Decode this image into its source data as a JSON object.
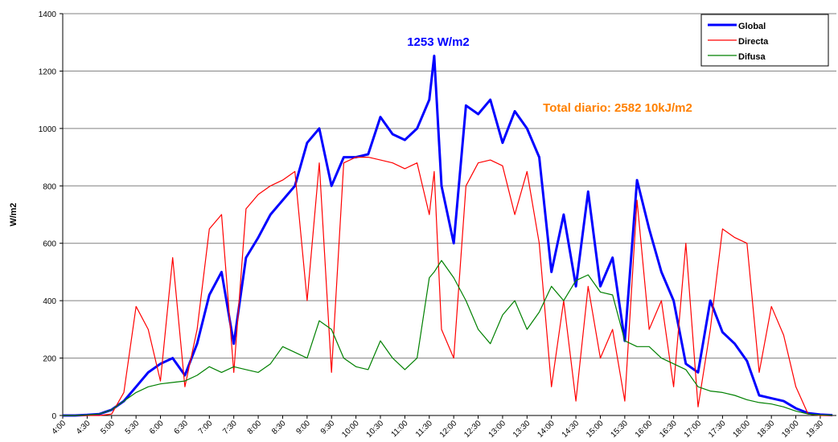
{
  "chart_data": {
    "type": "line",
    "y_label": "W/m2",
    "annotations": [
      {
        "text": "1253  W/m2",
        "color": "#0000ff"
      },
      {
        "text": "Total diario:  2582  10kJ/m2",
        "color": "#ff8000"
      }
    ],
    "x": [
      4,
      4.25,
      4.5,
      4.75,
      5,
      5.25,
      5.5,
      5.75,
      6,
      6.25,
      6.5,
      6.75,
      7,
      7.25,
      7.5,
      7.75,
      8,
      8.25,
      8.5,
      8.75,
      9,
      9.25,
      9.5,
      9.75,
      10,
      10.25,
      10.5,
      10.75,
      11,
      11.25,
      11.5,
      11.6,
      11.75,
      12,
      12.25,
      12.5,
      12.75,
      13,
      13.25,
      13.5,
      13.75,
      14,
      14.25,
      14.5,
      14.75,
      15,
      15.25,
      15.5,
      15.75,
      16,
      16.25,
      16.5,
      16.75,
      17,
      17.25,
      17.5,
      17.75,
      18,
      18.25,
      18.5,
      18.75,
      19,
      19.25,
      19.5,
      19.75
    ],
    "series": [
      {
        "name": "Global",
        "color": "#0000ff",
        "width": 3,
        "values": [
          0,
          0,
          2,
          5,
          20,
          50,
          100,
          150,
          180,
          200,
          140,
          250,
          420,
          500,
          250,
          550,
          620,
          700,
          750,
          800,
          950,
          1000,
          800,
          900,
          900,
          910,
          1040,
          980,
          960,
          1000,
          1100,
          1253,
          800,
          600,
          1080,
          1050,
          1100,
          950,
          1060,
          1000,
          900,
          500,
          700,
          450,
          780,
          450,
          550,
          260,
          820,
          650,
          500,
          400,
          180,
          150,
          400,
          290,
          250,
          190,
          70,
          60,
          50,
          25,
          8,
          3,
          1
        ]
      },
      {
        "name": "Directa",
        "color": "#ff0000",
        "width": 1.2,
        "values": [
          0,
          0,
          0,
          0,
          5,
          80,
          380,
          300,
          120,
          550,
          100,
          300,
          650,
          700,
          150,
          720,
          770,
          800,
          820,
          850,
          400,
          880,
          150,
          880,
          900,
          900,
          890,
          880,
          860,
          880,
          700,
          850,
          300,
          200,
          800,
          880,
          890,
          870,
          700,
          850,
          600,
          100,
          400,
          50,
          450,
          200,
          300,
          50,
          750,
          300,
          400,
          100,
          600,
          30,
          300,
          650,
          620,
          600,
          150,
          380,
          280,
          100,
          5,
          0,
          0
        ]
      },
      {
        "name": "Difusa",
        "color": "#008000",
        "width": 1.2,
        "values": [
          0,
          0,
          2,
          5,
          20,
          50,
          80,
          100,
          110,
          115,
          120,
          140,
          170,
          150,
          170,
          160,
          150,
          180,
          240,
          220,
          200,
          330,
          300,
          200,
          170,
          160,
          260,
          200,
          160,
          200,
          480,
          500,
          540,
          480,
          400,
          300,
          250,
          350,
          400,
          300,
          360,
          450,
          400,
          470,
          490,
          430,
          420,
          260,
          240,
          240,
          200,
          180,
          160,
          100,
          85,
          80,
          70,
          55,
          45,
          40,
          30,
          15,
          5,
          2,
          1
        ]
      }
    ],
    "xlim": [
      4,
      19.83
    ],
    "xticks": [
      {
        "value": 4,
        "label": "4:00"
      },
      {
        "value": 4.5,
        "label": "4:30"
      },
      {
        "value": 5,
        "label": "5:00"
      },
      {
        "value": 5.5,
        "label": "5:30"
      },
      {
        "value": 6,
        "label": "6:00"
      },
      {
        "value": 6.5,
        "label": "6:30"
      },
      {
        "value": 7,
        "label": "7:00"
      },
      {
        "value": 7.5,
        "label": "7:30"
      },
      {
        "value": 8,
        "label": "8:00"
      },
      {
        "value": 8.5,
        "label": "8:30"
      },
      {
        "value": 9,
        "label": "9:00"
      },
      {
        "value": 9.5,
        "label": "9:30"
      },
      {
        "value": 10,
        "label": "10:00"
      },
      {
        "value": 10.5,
        "label": "10:30"
      },
      {
        "value": 11,
        "label": "11:00"
      },
      {
        "value": 11.5,
        "label": "11:30"
      },
      {
        "value": 12,
        "label": "12:00"
      },
      {
        "value": 12.5,
        "label": "12:30"
      },
      {
        "value": 13,
        "label": "13:00"
      },
      {
        "value": 13.5,
        "label": "13:30"
      },
      {
        "value": 14,
        "label": "14:00"
      },
      {
        "value": 14.5,
        "label": "14:30"
      },
      {
        "value": 15,
        "label": "15:00"
      },
      {
        "value": 15.5,
        "label": "15:30"
      },
      {
        "value": 16,
        "label": "16:00"
      },
      {
        "value": 16.5,
        "label": "16:30"
      },
      {
        "value": 17,
        "label": "17:00"
      },
      {
        "value": 17.5,
        "label": "17:30"
      },
      {
        "value": 18,
        "label": "18:00"
      },
      {
        "value": 18.5,
        "label": "18:30"
      },
      {
        "value": 19,
        "label": "19:00"
      },
      {
        "value": 19.5,
        "label": "19:30"
      }
    ],
    "ylim": [
      0,
      1400
    ],
    "yticks": [
      0,
      200,
      400,
      600,
      800,
      1000,
      1200,
      1400
    ],
    "grid": true,
    "legend": "upper right"
  }
}
